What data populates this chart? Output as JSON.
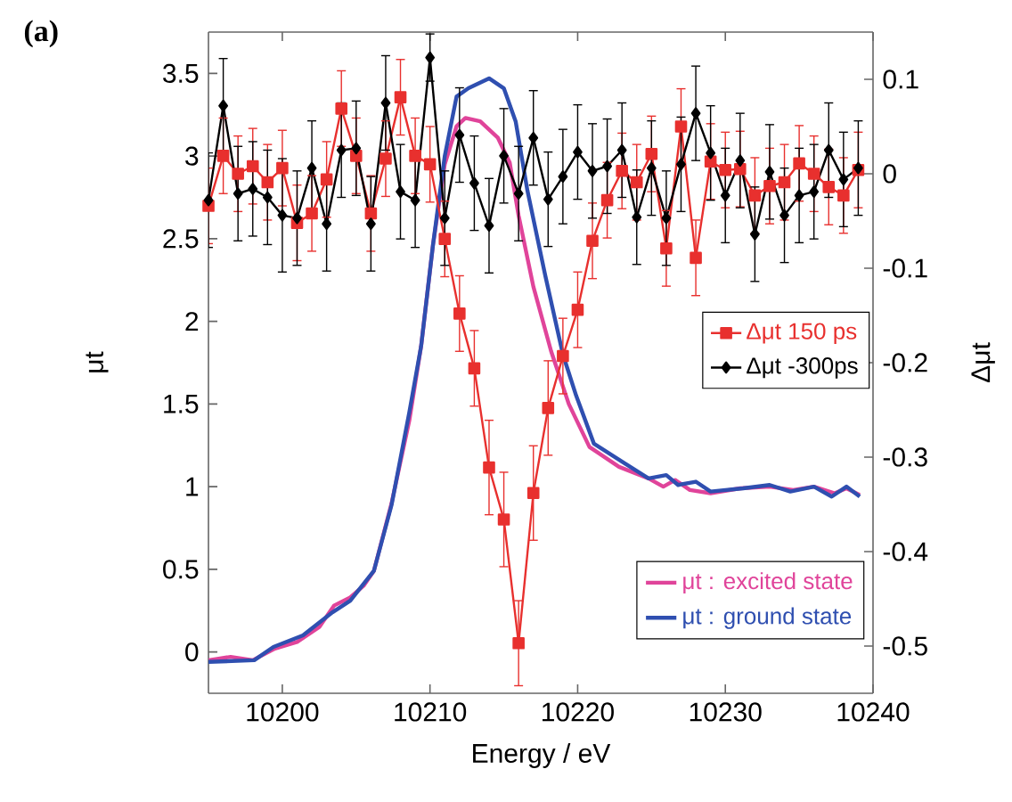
{
  "chart_data": {
    "type": "line",
    "xlabel": "Energy / eV",
    "ylabel": "μt",
    "y2label": "Δμt",
    "annotations": [
      "(a)"
    ],
    "xlim": [
      10195,
      10240
    ],
    "xticks": [
      10200,
      10210,
      10220,
      10230,
      10240
    ],
    "ylim": [
      -0.25,
      3.75
    ],
    "yticks": [
      0,
      0.5,
      1,
      1.5,
      2,
      2.5,
      3,
      3.5
    ],
    "y2lim": [
      -0.55,
      0.15
    ],
    "y2ticks": [
      -0.5,
      -0.4,
      -0.3,
      -0.2,
      -0.1,
      0,
      0.1
    ],
    "legend": "right",
    "grid": false,
    "series": [
      {
        "name": "μt : excited state",
        "color": "#e0449a",
        "marker": "none",
        "x": [
          10195,
          10196.5,
          10198,
          10199.5,
          10201,
          10202.5,
          10203.5,
          10204.6,
          10205.5,
          10206.2,
          10207.4,
          10208.6,
          10209.4,
          10210.2,
          10211,
          10211.8,
          10212.4,
          10213.4,
          10214.6,
          10215.4,
          10216,
          10217,
          10218.2,
          10219.4,
          10220.8,
          10222.8,
          10224.8,
          10225.8,
          10226.6,
          10227.6,
          10229,
          10231,
          10233,
          10234.6,
          10236,
          10237.4,
          10238.2,
          10239.1
        ],
        "values": [
          -0.05,
          -0.03,
          -0.05,
          0.02,
          0.06,
          0.15,
          0.28,
          0.33,
          0.4,
          0.49,
          0.9,
          1.4,
          1.85,
          2.46,
          2.95,
          3.18,
          3.23,
          3.21,
          3.11,
          2.96,
          2.64,
          2.21,
          1.82,
          1.5,
          1.24,
          1.12,
          1.05,
          1.0,
          1.04,
          0.98,
          0.96,
          0.99,
          1.0,
          0.98,
          1.0,
          0.96,
          0.99,
          0.95
        ]
      },
      {
        "name": "μt : ground state",
        "color": "#2f4fb0",
        "marker": "none",
        "x": [
          10195,
          10198.1,
          10199.4,
          10201.4,
          10203.4,
          10204.6,
          10206.2,
          10207.4,
          10208.6,
          10209.4,
          10210.2,
          10211,
          10211.8,
          10212.6,
          10214,
          10215,
          10215.8,
          10216.6,
          10217.8,
          10219,
          10219.9,
          10221.1,
          10223.2,
          10224.8,
          10226,
          10226.8,
          10228,
          10229,
          10231.2,
          10233,
          10234.4,
          10236,
          10237.2,
          10238.2,
          10239.1
        ],
        "values": [
          -0.06,
          -0.05,
          0.03,
          0.1,
          0.24,
          0.31,
          0.49,
          0.89,
          1.45,
          1.85,
          2.46,
          3.0,
          3.36,
          3.41,
          3.47,
          3.41,
          3.21,
          2.79,
          2.28,
          1.8,
          1.55,
          1.26,
          1.14,
          1.05,
          1.07,
          1.01,
          1.03,
          0.97,
          0.99,
          1.01,
          0.97,
          1.0,
          0.94,
          1.0,
          0.94
        ]
      },
      {
        "name": "Δμt 150 ps",
        "color": "#e8302e",
        "marker": "square",
        "axis": "y2",
        "x": [
          10195,
          10196,
          10197,
          10198,
          10199,
          10200,
          10201,
          10202,
          10203,
          10204,
          10205,
          10206,
          10207,
          10208,
          10209,
          10210,
          10211,
          10212,
          10213,
          10214,
          10215,
          10216,
          10217,
          10218,
          10219,
          10220,
          10221,
          10222,
          10223,
          10224,
          10225,
          10226,
          10227,
          10228,
          10229,
          10230,
          10231,
          10232,
          10233,
          10234,
          10235,
          10236,
          10237,
          10238,
          10239
        ],
        "values": [
          -0.034,
          0.019,
          0.0,
          0.008,
          -0.009,
          0.006,
          -0.052,
          -0.042,
          -0.006,
          0.069,
          0.019,
          -0.042,
          0.016,
          0.081,
          0.019,
          0.01,
          -0.069,
          -0.148,
          -0.206,
          -0.311,
          -0.366,
          -0.497,
          -0.338,
          -0.248,
          -0.193,
          -0.144,
          -0.071,
          -0.028,
          0.003,
          -0.009,
          0.021,
          -0.079,
          0.05,
          -0.089,
          0.013,
          0.004,
          0.005,
          -0.023,
          -0.013,
          -0.009,
          0.011,
          0.0,
          -0.014,
          -0.023,
          0.004
        ],
        "errors": [
          0.04,
          0.04,
          0.04,
          0.04,
          0.04,
          0.04,
          0.04,
          0.04,
          0.04,
          0.04,
          0.04,
          0.04,
          0.04,
          0.04,
          0.04,
          0.04,
          0.04,
          0.04,
          0.04,
          0.05,
          0.05,
          0.045,
          0.05,
          0.05,
          0.04,
          0.04,
          0.04,
          0.04,
          0.04,
          0.04,
          0.04,
          0.04,
          0.04,
          0.04,
          0.04,
          0.04,
          0.04,
          0.04,
          0.04,
          0.04,
          0.04,
          0.04,
          0.04,
          0.04,
          0.04
        ]
      },
      {
        "name": "Δμt -300ps",
        "color": "#000000",
        "marker": "diamond",
        "axis": "y2",
        "x": [
          10195,
          10196,
          10197,
          10198,
          10199,
          10200,
          10201,
          10202,
          10203,
          10204,
          10205,
          10206,
          10207,
          10208,
          10209,
          10210,
          10211,
          10212,
          10213,
          10214,
          10215,
          10216,
          10217,
          10218,
          10219,
          10220,
          10221,
          10222,
          10223,
          10224,
          10225,
          10226,
          10227,
          10228,
          10229,
          10230,
          10231,
          10232,
          10233,
          10234,
          10235,
          10236,
          10237,
          10238,
          10239
        ],
        "values": [
          -0.028,
          0.072,
          -0.021,
          -0.016,
          -0.025,
          -0.044,
          -0.047,
          0.006,
          -0.053,
          0.025,
          0.027,
          -0.053,
          0.075,
          -0.019,
          -0.028,
          0.123,
          -0.047,
          0.041,
          -0.01,
          -0.055,
          0.019,
          -0.021,
          0.038,
          -0.027,
          -0.003,
          0.023,
          0.003,
          0.008,
          0.025,
          -0.046,
          0.006,
          -0.047,
          0.01,
          0.064,
          0.022,
          -0.023,
          0.014,
          -0.064,
          0.002,
          -0.044,
          -0.023,
          -0.019,
          0.025,
          -0.006,
          0.006
        ],
        "errors": [
          0.05,
          0.05,
          0.05,
          0.05,
          0.05,
          0.06,
          0.05,
          0.05,
          0.05,
          0.05,
          0.05,
          0.05,
          0.05,
          0.05,
          0.05,
          0.025,
          0.05,
          0.05,
          0.05,
          0.05,
          0.05,
          0.05,
          0.05,
          0.05,
          0.05,
          0.05,
          0.05,
          0.05,
          0.05,
          0.05,
          0.05,
          0.05,
          0.05,
          0.05,
          0.05,
          0.05,
          0.05,
          0.05,
          0.05,
          0.05,
          0.05,
          0.05,
          0.05,
          0.05,
          0.05
        ]
      }
    ]
  }
}
